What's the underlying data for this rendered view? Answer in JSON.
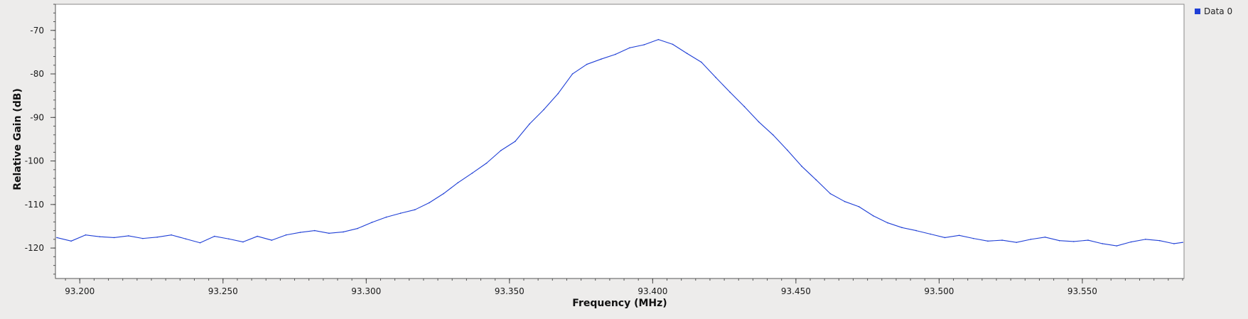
{
  "chart_data": {
    "type": "line",
    "xlabel": "Frequency (MHz)",
    "ylabel": "Relative Gain (dB)",
    "xlim": [
      93.1915,
      93.5855
    ],
    "ylim": [
      -127,
      -64
    ],
    "x_ticks": [
      93.2,
      93.25,
      93.3,
      93.35,
      93.4,
      93.45,
      93.5,
      93.55
    ],
    "x_tick_labels": [
      "93.200",
      "93.250",
      "93.300",
      "93.350",
      "93.400",
      "93.450",
      "93.500",
      "93.550"
    ],
    "y_ticks": [
      -70,
      -80,
      -90,
      -100,
      -110,
      -120
    ],
    "y_tick_labels": [
      "-70",
      "-80",
      "-90",
      "-100",
      "-110",
      "-120"
    ],
    "grid": false,
    "legend_position": "top-right-outside",
    "series": [
      {
        "name": "Data 0",
        "color": "#1f3fd6",
        "points": [
          [
            93.192,
            -117.6
          ],
          [
            93.197,
            -118.4
          ],
          [
            93.202,
            -117.0
          ],
          [
            93.207,
            -117.4
          ],
          [
            93.212,
            -117.6
          ],
          [
            93.217,
            -117.2
          ],
          [
            93.222,
            -117.8
          ],
          [
            93.227,
            -117.5
          ],
          [
            93.232,
            -117.0
          ],
          [
            93.237,
            -117.9
          ],
          [
            93.242,
            -118.8
          ],
          [
            93.247,
            -117.3
          ],
          [
            93.252,
            -117.9
          ],
          [
            93.257,
            -118.6
          ],
          [
            93.262,
            -117.3
          ],
          [
            93.267,
            -118.2
          ],
          [
            93.272,
            -117.0
          ],
          [
            93.277,
            -116.4
          ],
          [
            93.282,
            -116.0
          ],
          [
            93.287,
            -116.6
          ],
          [
            93.292,
            -116.3
          ],
          [
            93.297,
            -115.5
          ],
          [
            93.302,
            -114.1
          ],
          [
            93.307,
            -112.9
          ],
          [
            93.312,
            -112.0
          ],
          [
            93.317,
            -111.2
          ],
          [
            93.322,
            -109.6
          ],
          [
            93.327,
            -107.5
          ],
          [
            93.332,
            -105.0
          ],
          [
            93.337,
            -102.8
          ],
          [
            93.342,
            -100.5
          ],
          [
            93.347,
            -97.6
          ],
          [
            93.352,
            -95.5
          ],
          [
            93.357,
            -91.5
          ],
          [
            93.362,
            -88.2
          ],
          [
            93.367,
            -84.5
          ],
          [
            93.372,
            -80.0
          ],
          [
            93.377,
            -77.8
          ],
          [
            93.382,
            -76.6
          ],
          [
            93.387,
            -75.5
          ],
          [
            93.392,
            -74.0
          ],
          [
            93.397,
            -73.3
          ],
          [
            93.402,
            -72.1
          ],
          [
            93.407,
            -73.2
          ],
          [
            93.412,
            -75.3
          ],
          [
            93.417,
            -77.3
          ],
          [
            93.422,
            -80.8
          ],
          [
            93.427,
            -84.2
          ],
          [
            93.432,
            -87.5
          ],
          [
            93.437,
            -91.0
          ],
          [
            93.442,
            -94.0
          ],
          [
            93.447,
            -97.5
          ],
          [
            93.452,
            -101.2
          ],
          [
            93.457,
            -104.3
          ],
          [
            93.462,
            -107.5
          ],
          [
            93.467,
            -109.3
          ],
          [
            93.472,
            -110.5
          ],
          [
            93.477,
            -112.6
          ],
          [
            93.482,
            -114.2
          ],
          [
            93.487,
            -115.3
          ],
          [
            93.492,
            -116.0
          ],
          [
            93.497,
            -116.8
          ],
          [
            93.502,
            -117.6
          ],
          [
            93.507,
            -117.1
          ],
          [
            93.512,
            -117.8
          ],
          [
            93.517,
            -118.4
          ],
          [
            93.522,
            -118.2
          ],
          [
            93.527,
            -118.7
          ],
          [
            93.532,
            -118.0
          ],
          [
            93.537,
            -117.5
          ],
          [
            93.542,
            -118.3
          ],
          [
            93.547,
            -118.5
          ],
          [
            93.552,
            -118.2
          ],
          [
            93.557,
            -119.0
          ],
          [
            93.562,
            -119.5
          ],
          [
            93.567,
            -118.6
          ],
          [
            93.572,
            -118.0
          ],
          [
            93.577,
            -118.3
          ],
          [
            93.582,
            -119.0
          ],
          [
            93.585,
            -118.7
          ]
        ]
      }
    ]
  }
}
